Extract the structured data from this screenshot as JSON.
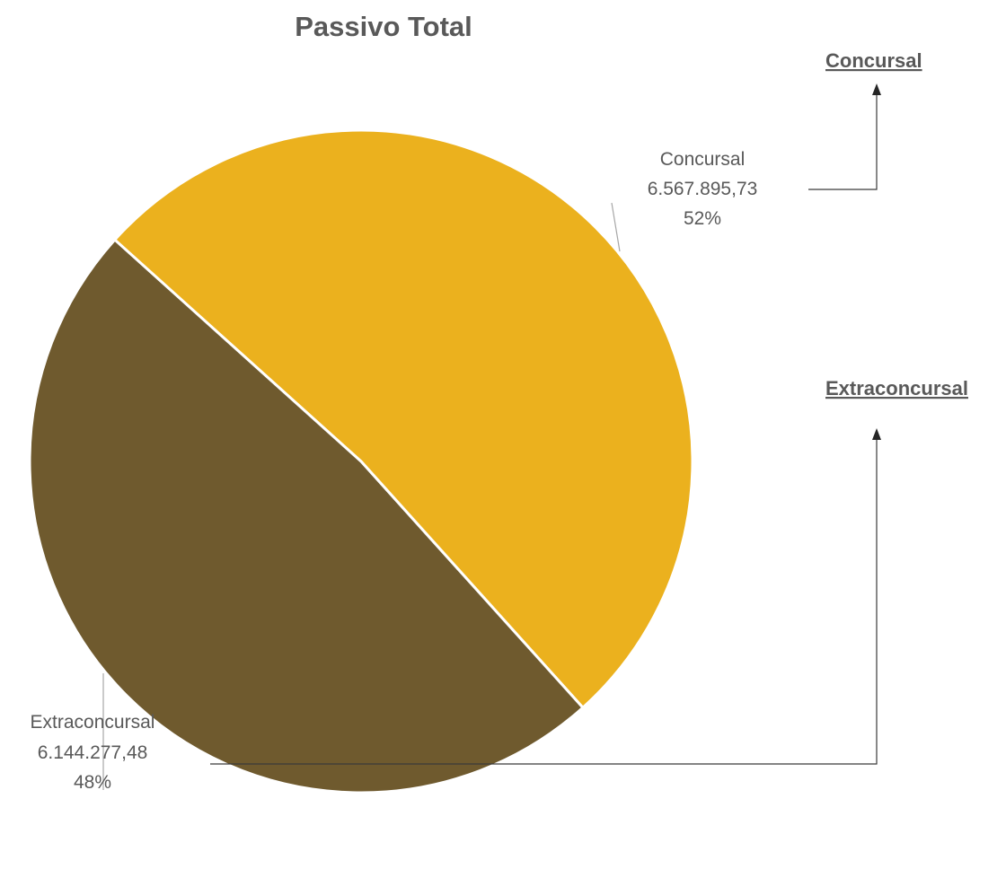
{
  "chart_data": {
    "type": "pie",
    "title": "Passivo Total",
    "slices": [
      {
        "category": "Concursal",
        "value": 6567895.73,
        "value_label": "6.567.895,73",
        "percent_label": "52%",
        "color": "#EBB11E"
      },
      {
        "category": "Extraconcursal",
        "value": 6144277.48,
        "value_label": "6.144.277,48",
        "percent_label": "48%",
        "color": "#6F5A2E"
      }
    ],
    "legend": "none"
  },
  "links": {
    "concursal": "Concursal",
    "extraconcursal": "Extraconcursal"
  }
}
